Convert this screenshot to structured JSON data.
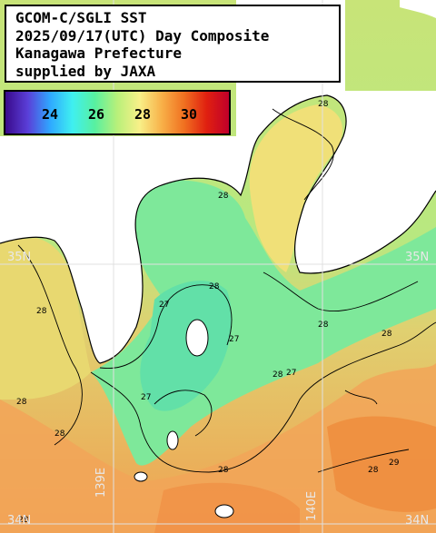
{
  "title": {
    "lines": [
      "GCOM-C/SGLI SST",
      "2025/09/17(UTC) Day Composite",
      "Kanagawa Prefecture",
      "supplied by JAXA"
    ]
  },
  "legend": {
    "ticks": [
      "24",
      "26",
      "28",
      "30"
    ],
    "colors": [
      "#3a0a8c",
      "#5a3fd8",
      "#2fa8ff",
      "#3ff0f0",
      "#58f0a0",
      "#b8f07a",
      "#f8f088",
      "#f8b048",
      "#f07020",
      "#e02010",
      "#c0002a"
    ]
  },
  "grid": {
    "lat_labels": [
      "35N",
      "35N",
      "34N",
      "34N"
    ],
    "lon_labels": [
      "139E",
      "140E"
    ]
  },
  "contours": [
    "28",
    "28",
    "28",
    "28",
    "27",
    "27",
    "27",
    "27",
    "28",
    "28",
    "28",
    "28",
    "28",
    "28",
    "28",
    "28",
    "29"
  ],
  "colors": {
    "land": "#ffffff",
    "sea_warm": "#f0a860",
    "sea_mild": "#d8e070",
    "sea_cool": "#80e890",
    "grid": "#e0e0e0"
  }
}
